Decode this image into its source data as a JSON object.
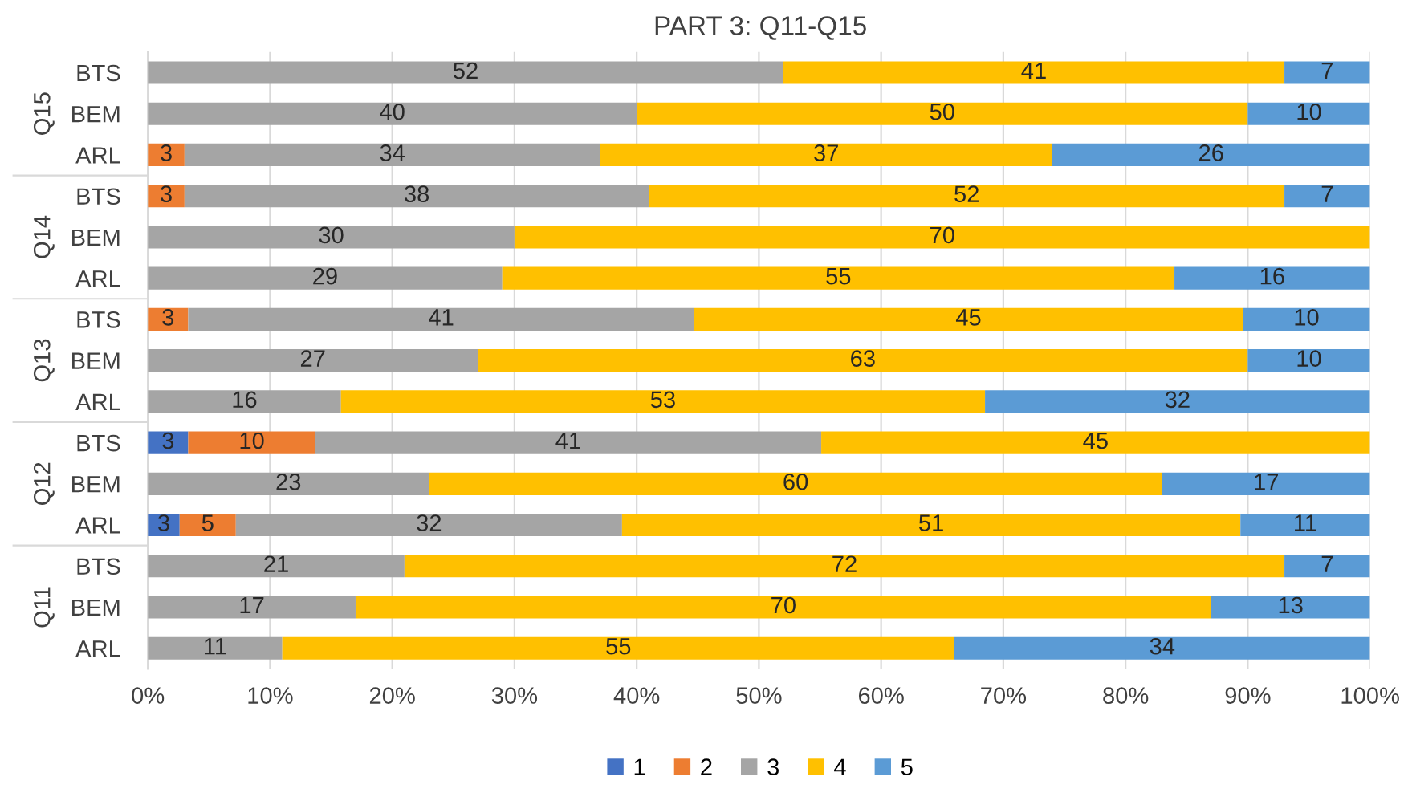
{
  "chart_data": {
    "type": "bar",
    "orientation": "horizontal",
    "stacked": true,
    "title": "PART 3: Q11-Q15",
    "categories": [
      "BTS",
      "BEM",
      "ARL",
      "BTS",
      "BEM",
      "ARL",
      "BTS",
      "BEM",
      "ARL",
      "BTS",
      "BEM",
      "ARL",
      "BTS",
      "BEM",
      "ARL"
    ],
    "annotations": [
      "Q15",
      "Q14",
      "Q13",
      "Q12",
      "Q11"
    ],
    "series": [
      {
        "name": "1",
        "color": "#4472c4",
        "values": [
          null,
          null,
          null,
          null,
          null,
          null,
          null,
          null,
          null,
          3.3,
          null,
          2.6,
          null,
          null,
          null
        ],
        "value_labels": [
          null,
          null,
          null,
          null,
          null,
          null,
          null,
          null,
          null,
          "3",
          null,
          "3",
          null,
          null,
          null
        ]
      },
      {
        "name": "2",
        "color": "#ed7d31",
        "values": [
          null,
          null,
          3,
          3,
          null,
          null,
          3.3,
          null,
          null,
          10.4,
          null,
          4.6,
          null,
          null,
          null
        ],
        "value_labels": [
          null,
          null,
          "3",
          "3",
          null,
          null,
          "3",
          null,
          null,
          "10",
          null,
          "5",
          null,
          null,
          null
        ]
      },
      {
        "name": "3",
        "color": "#a5a5a5",
        "values": [
          52,
          40,
          34,
          38,
          30,
          29,
          41.4,
          27,
          15.8,
          41.4,
          23,
          31.6,
          21,
          17,
          11
        ],
        "value_labels": [
          "52",
          "40",
          "34",
          "38",
          "30",
          "29",
          "41",
          "27",
          "16",
          "41",
          "23",
          "32",
          "21",
          "17",
          "11"
        ]
      },
      {
        "name": "4",
        "color": "#ffc000",
        "values": [
          41,
          50,
          37,
          52,
          70,
          55,
          44.9,
          63,
          52.7,
          44.9,
          60,
          50.6,
          72,
          70,
          55
        ],
        "value_labels": [
          "41",
          "50",
          "37",
          "52",
          "70",
          "55",
          "45",
          "63",
          "53",
          "45",
          "60",
          "51",
          "72",
          "70",
          "55"
        ]
      },
      {
        "name": "5",
        "color": "#5b9bd5",
        "values": [
          7,
          10,
          26,
          7,
          null,
          16,
          10.4,
          10,
          31.5,
          null,
          17,
          10.6,
          7,
          13,
          34
        ],
        "value_labels": [
          "7",
          "10",
          "26",
          "7",
          null,
          "16",
          "10",
          "10",
          "32",
          null,
          "17",
          "11",
          "7",
          "13",
          "34"
        ]
      }
    ],
    "xlim": [
      0,
      100
    ],
    "xticks": [
      {
        "value": 0,
        "label": "0%"
      },
      {
        "value": 10,
        "label": "10%"
      },
      {
        "value": 20,
        "label": "20%"
      },
      {
        "value": 30,
        "label": "30%"
      },
      {
        "value": 40,
        "label": "40%"
      },
      {
        "value": 50,
        "label": "50%"
      },
      {
        "value": 60,
        "label": "60%"
      },
      {
        "value": 70,
        "label": "70%"
      },
      {
        "value": 80,
        "label": "80%"
      },
      {
        "value": 90,
        "label": "90%"
      },
      {
        "value": 100,
        "label": "100%"
      }
    ],
    "grid": "x",
    "legend": "bottom"
  }
}
